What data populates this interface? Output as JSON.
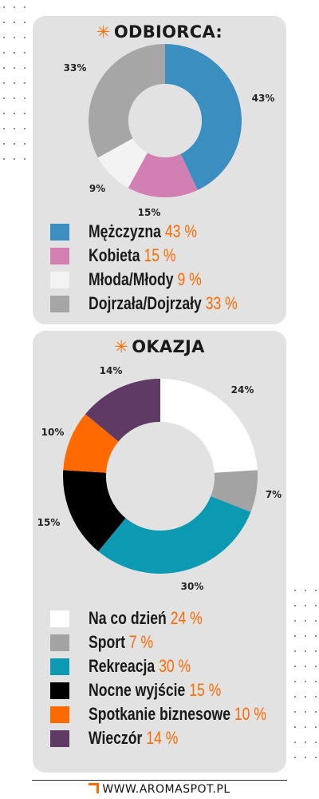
{
  "colors": {
    "accent": "#ff6a00",
    "panel_bg": "#e2e2e2"
  },
  "chart_data": [
    {
      "type": "donut",
      "title": "ODBIORCA:",
      "title_icon": "asterisk-icon",
      "series": [
        {
          "label": "Mężczyzna",
          "value": 43,
          "value_text": "43%",
          "legend_value": "43 %",
          "color": "#3a8fc0"
        },
        {
          "label": "Kobieta",
          "value": 15,
          "value_text": "15%",
          "legend_value": "15 %",
          "color": "#d27fb4"
        },
        {
          "label": "Młoda/Młody",
          "value": 9,
          "value_text": "9%",
          "legend_value": "9 %",
          "color": "#f3f3f3"
        },
        {
          "label": "Dojrzała/Dojrzały",
          "value": 33,
          "value_text": "33%",
          "legend_value": "33 %",
          "color": "#a6a6a6"
        }
      ]
    },
    {
      "type": "donut",
      "title": "OKAZJA",
      "title_icon": "asterisk-icon",
      "series": [
        {
          "label": "Na co dzień",
          "value": 24,
          "value_text": "24%",
          "legend_value": "24 %",
          "color": "#ffffff"
        },
        {
          "label": "Sport",
          "value": 7,
          "value_text": "7%",
          "legend_value": "7 %",
          "color": "#a3a3a3"
        },
        {
          "label": "Rekreacja",
          "value": 30,
          "value_text": "30%",
          "legend_value": "30 %",
          "color": "#0c9ab3"
        },
        {
          "label": "Nocne wyjście",
          "value": 15,
          "value_text": "15%",
          "legend_value": "15 %",
          "color": "#000000"
        },
        {
          "label": "Spotkanie biznesowe",
          "value": 10,
          "value_text": "10%",
          "legend_value": "10 %",
          "color": "#ff6a00"
        },
        {
          "label": "Wieczór",
          "value": 14,
          "value_text": "14%",
          "legend_value": "14 %",
          "color": "#5f3a64"
        }
      ]
    }
  ],
  "footer": {
    "site": "WWW.AROMASPOT.PL",
    "logo_icon": "aromaspot-logo-icon"
  }
}
